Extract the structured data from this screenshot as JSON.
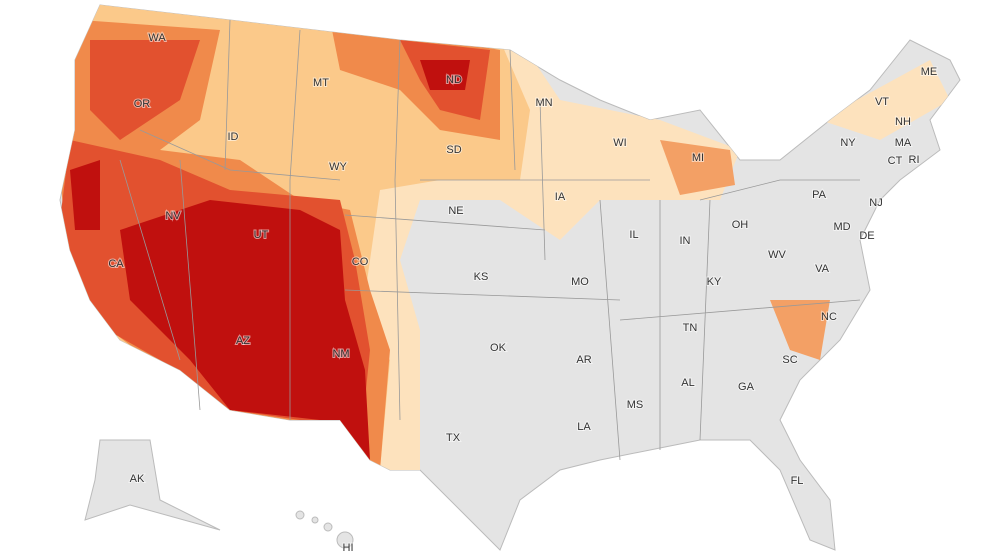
{
  "map": {
    "state_labels": [
      "WA",
      "OR",
      "ID",
      "MT",
      "ND",
      "MN",
      "WI",
      "MI",
      "NY",
      "VT",
      "NH",
      "ME",
      "MA",
      "CT",
      "RI",
      "PA",
      "NJ",
      "DE",
      "MD",
      "OH",
      "IN",
      "IL",
      "IA",
      "SD",
      "WY",
      "NE",
      "NV",
      "UT",
      "CA",
      "CO",
      "KS",
      "MO",
      "KY",
      "WV",
      "VA",
      "NC",
      "SC",
      "TN",
      "AR",
      "OK",
      "AZ",
      "NM",
      "TX",
      "LA",
      "MS",
      "AL",
      "GA",
      "FL",
      "AK",
      "HI"
    ]
  }
}
